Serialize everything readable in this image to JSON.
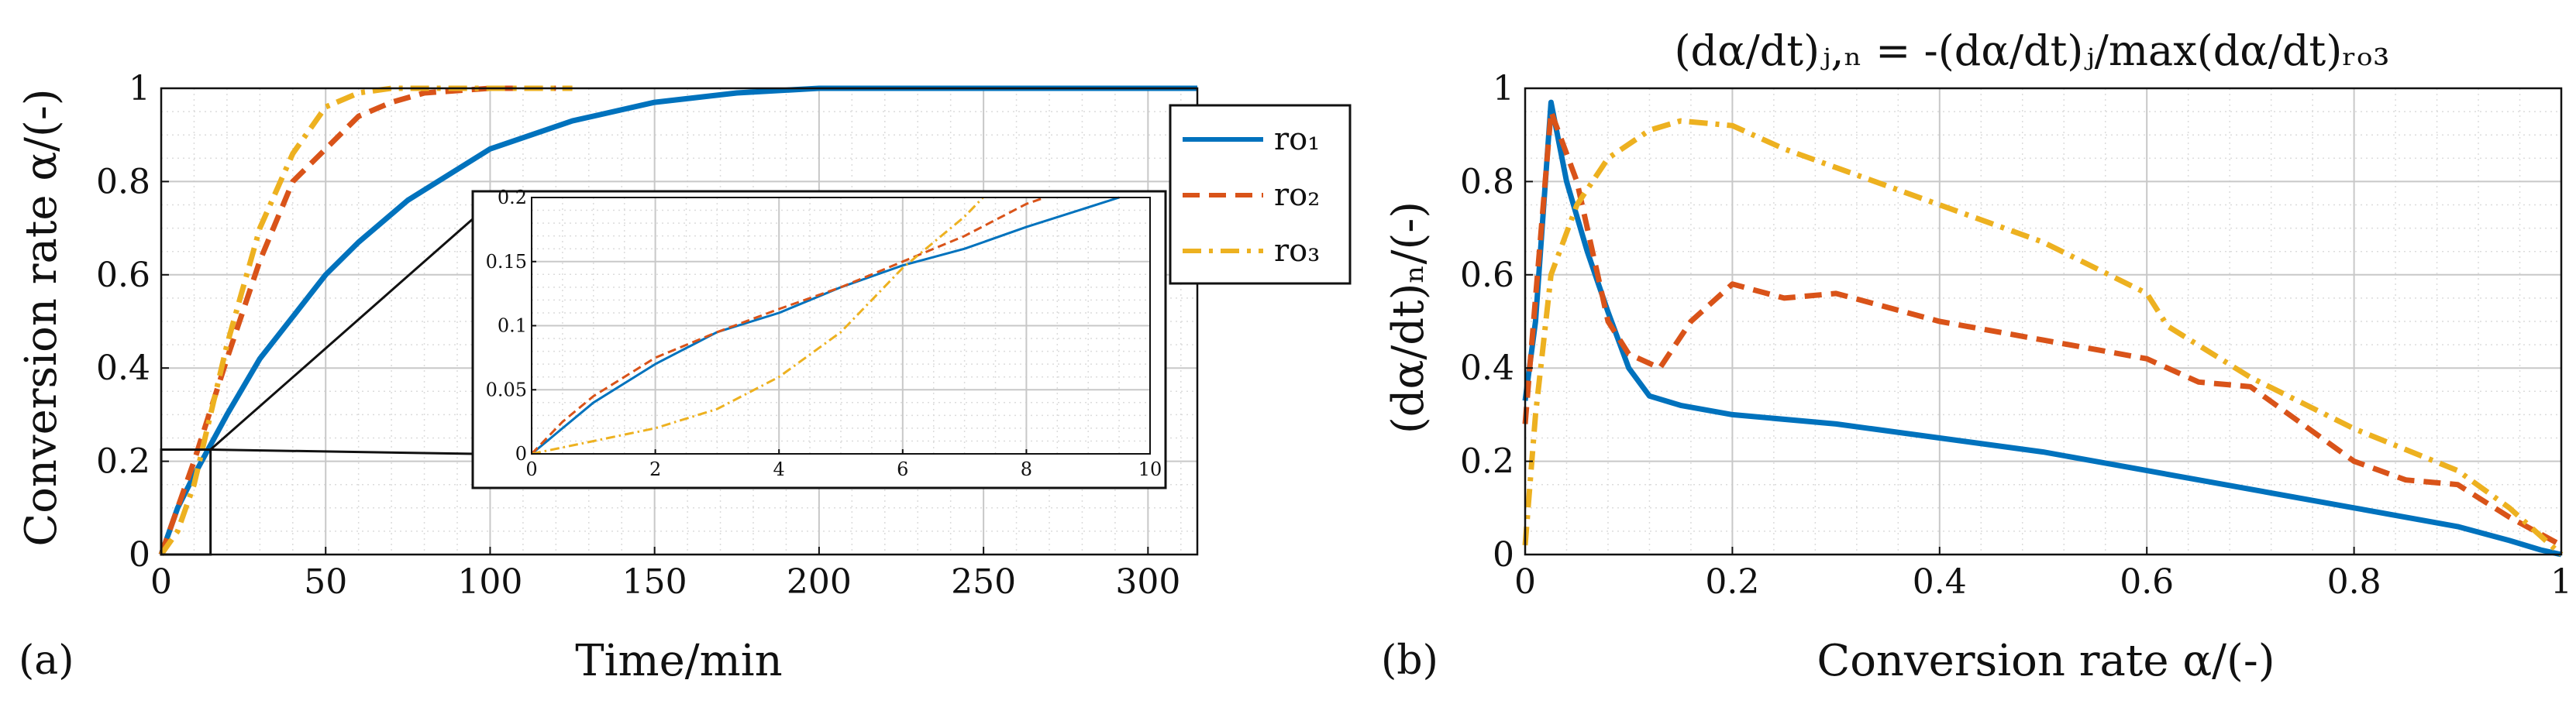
{
  "colors": {
    "ro1": "#0072BD",
    "ro2": "#D95319",
    "ro3": "#EDB120"
  },
  "panel_a": {
    "label": "(a)",
    "xlabel": "Time/min",
    "ylabel": "Conversion rate α/(-)",
    "legend": [
      "ro₁",
      "ro₂",
      "ro₃"
    ]
  },
  "panel_b": {
    "label": "(b)",
    "title": "(dα/dt)ⱼ,ₙ = -(dα/dt)ⱼ/max(dα/dt)ᵣₒ₃",
    "xlabel": "Conversion rate α/(-)",
    "ylabel": "(dα/dt)ₙ/(-)"
  },
  "chart_data": [
    {
      "type": "line",
      "panel": "a",
      "xlabel": "Time/min",
      "ylabel": "Conversion rate α/(-)",
      "xlim": [
        0,
        315
      ],
      "ylim": [
        0,
        1
      ],
      "xticks": [
        0,
        50,
        100,
        150,
        200,
        250,
        300
      ],
      "yticks": [
        0,
        0.2,
        0.4,
        0.6,
        0.8,
        1
      ],
      "xticklabels": [
        "0",
        "50",
        "100",
        "150",
        "200",
        "250",
        "300"
      ],
      "yticklabels": [
        "0",
        "0.2",
        "0.4",
        "0.6",
        "0.8",
        "1"
      ],
      "grid": true,
      "legend_position": "top-right",
      "series": [
        {
          "name": "ro₁",
          "style": "solid",
          "x": [
            0,
            5,
            10,
            20,
            30,
            40,
            50,
            60,
            75,
            100,
            125,
            150,
            175,
            200,
            250,
            315
          ],
          "y": [
            0,
            0.1,
            0.17,
            0.3,
            0.42,
            0.51,
            0.6,
            0.67,
            0.76,
            0.87,
            0.93,
            0.97,
            0.99,
            1,
            1,
            1
          ]
        },
        {
          "name": "ro₂",
          "style": "dashed",
          "x": [
            0,
            5,
            10,
            20,
            30,
            40,
            50,
            60,
            70,
            80,
            100,
            120
          ],
          "y": [
            0,
            0.1,
            0.2,
            0.42,
            0.63,
            0.8,
            0.87,
            0.94,
            0.97,
            0.99,
            1,
            1
          ]
        },
        {
          "name": "ro₃",
          "style": "dashdot",
          "x": [
            0,
            5,
            10,
            20,
            30,
            40,
            50,
            60,
            70,
            80,
            100,
            125
          ],
          "y": [
            0,
            0.05,
            0.15,
            0.45,
            0.7,
            0.86,
            0.96,
            0.99,
            1,
            1,
            1,
            1
          ]
        }
      ],
      "inset": {
        "source_box": {
          "x": [
            0,
            15
          ],
          "y": [
            0,
            0.225
          ]
        },
        "xlim": [
          0,
          10
        ],
        "ylim": [
          0,
          0.2
        ],
        "xticks": [
          0,
          2,
          4,
          6,
          8,
          10
        ],
        "yticks": [
          0,
          0.05,
          0.1,
          0.15,
          0.2
        ],
        "xticklabels": [
          "0",
          "2",
          "4",
          "6",
          "8",
          "10"
        ],
        "yticklabels": [
          "0",
          "0.05",
          "0.1",
          "0.15",
          "0.2"
        ],
        "series": [
          {
            "name": "ro₁",
            "style": "solid",
            "x": [
              0,
              0.25,
              0.5,
              1,
              2,
              3,
              4,
              5,
              6,
              7,
              8,
              9.5
            ],
            "y": [
              0,
              0.01,
              0.02,
              0.04,
              0.07,
              0.095,
              0.11,
              0.13,
              0.147,
              0.16,
              0.177,
              0.2
            ]
          },
          {
            "name": "ro₂",
            "style": "dashed",
            "x": [
              0,
              0.5,
              1,
              2,
              3,
              4,
              5,
              6,
              7,
              8,
              8.3
            ],
            "y": [
              0,
              0.025,
              0.045,
              0.075,
              0.095,
              0.113,
              0.13,
              0.15,
              0.17,
              0.195,
              0.2
            ]
          },
          {
            "name": "ro₃",
            "style": "dashdot",
            "x": [
              0,
              1,
              2,
              3,
              4,
              5,
              5.5,
              6,
              6.5,
              7,
              7.3
            ],
            "y": [
              0,
              0.01,
              0.02,
              0.035,
              0.06,
              0.095,
              0.12,
              0.145,
              0.165,
              0.185,
              0.2
            ]
          }
        ]
      }
    },
    {
      "type": "line",
      "panel": "b",
      "title": "(dα/dt)ⱼ,ₙ = -(dα/dt)ⱼ/max(dα/dt)ᵣₒ₃",
      "xlabel": "Conversion rate α/(-)",
      "ylabel": "(dα/dt)ₙ/(-)",
      "xlim": [
        0,
        1
      ],
      "ylim": [
        0,
        1
      ],
      "xticks": [
        0,
        0.2,
        0.4,
        0.6,
        0.8,
        1
      ],
      "yticks": [
        0,
        0.2,
        0.4,
        0.6,
        0.8,
        1
      ],
      "xticklabels": [
        "0",
        "0.2",
        "0.4",
        "0.6",
        "0.8",
        "1"
      ],
      "yticklabels": [
        "0",
        "0.2",
        "0.4",
        "0.6",
        "0.8",
        "1"
      ],
      "grid": true,
      "series": [
        {
          "name": "ro₁",
          "style": "solid",
          "x": [
            0,
            0.01,
            0.025,
            0.04,
            0.06,
            0.08,
            0.1,
            0.12,
            0.15,
            0.2,
            0.3,
            0.4,
            0.5,
            0.6,
            0.7,
            0.8,
            0.9,
            0.95,
            0.98,
            1
          ],
          "y": [
            0.33,
            0.5,
            0.97,
            0.8,
            0.65,
            0.52,
            0.4,
            0.34,
            0.32,
            0.3,
            0.28,
            0.25,
            0.22,
            0.18,
            0.14,
            0.1,
            0.06,
            0.03,
            0.01,
            0
          ]
        },
        {
          "name": "ro₂",
          "style": "dashed",
          "x": [
            0,
            0.01,
            0.025,
            0.05,
            0.08,
            0.1,
            0.13,
            0.16,
            0.2,
            0.25,
            0.3,
            0.4,
            0.5,
            0.6,
            0.65,
            0.7,
            0.8,
            0.85,
            0.9,
            0.95,
            1
          ],
          "y": [
            0.28,
            0.55,
            0.95,
            0.8,
            0.5,
            0.43,
            0.4,
            0.5,
            0.58,
            0.55,
            0.56,
            0.5,
            0.46,
            0.42,
            0.37,
            0.36,
            0.2,
            0.16,
            0.15,
            0.08,
            0.02
          ]
        },
        {
          "name": "ro₃",
          "style": "dashdot",
          "x": [
            0,
            0.01,
            0.025,
            0.05,
            0.08,
            0.12,
            0.15,
            0.2,
            0.25,
            0.3,
            0.4,
            0.5,
            0.6,
            0.62,
            0.7,
            0.8,
            0.9,
            0.95,
            1
          ],
          "y": [
            0.02,
            0.3,
            0.6,
            0.75,
            0.85,
            0.91,
            0.93,
            0.92,
            0.87,
            0.83,
            0.75,
            0.67,
            0.56,
            0.49,
            0.38,
            0.27,
            0.18,
            0.1,
            0
          ]
        }
      ]
    }
  ]
}
